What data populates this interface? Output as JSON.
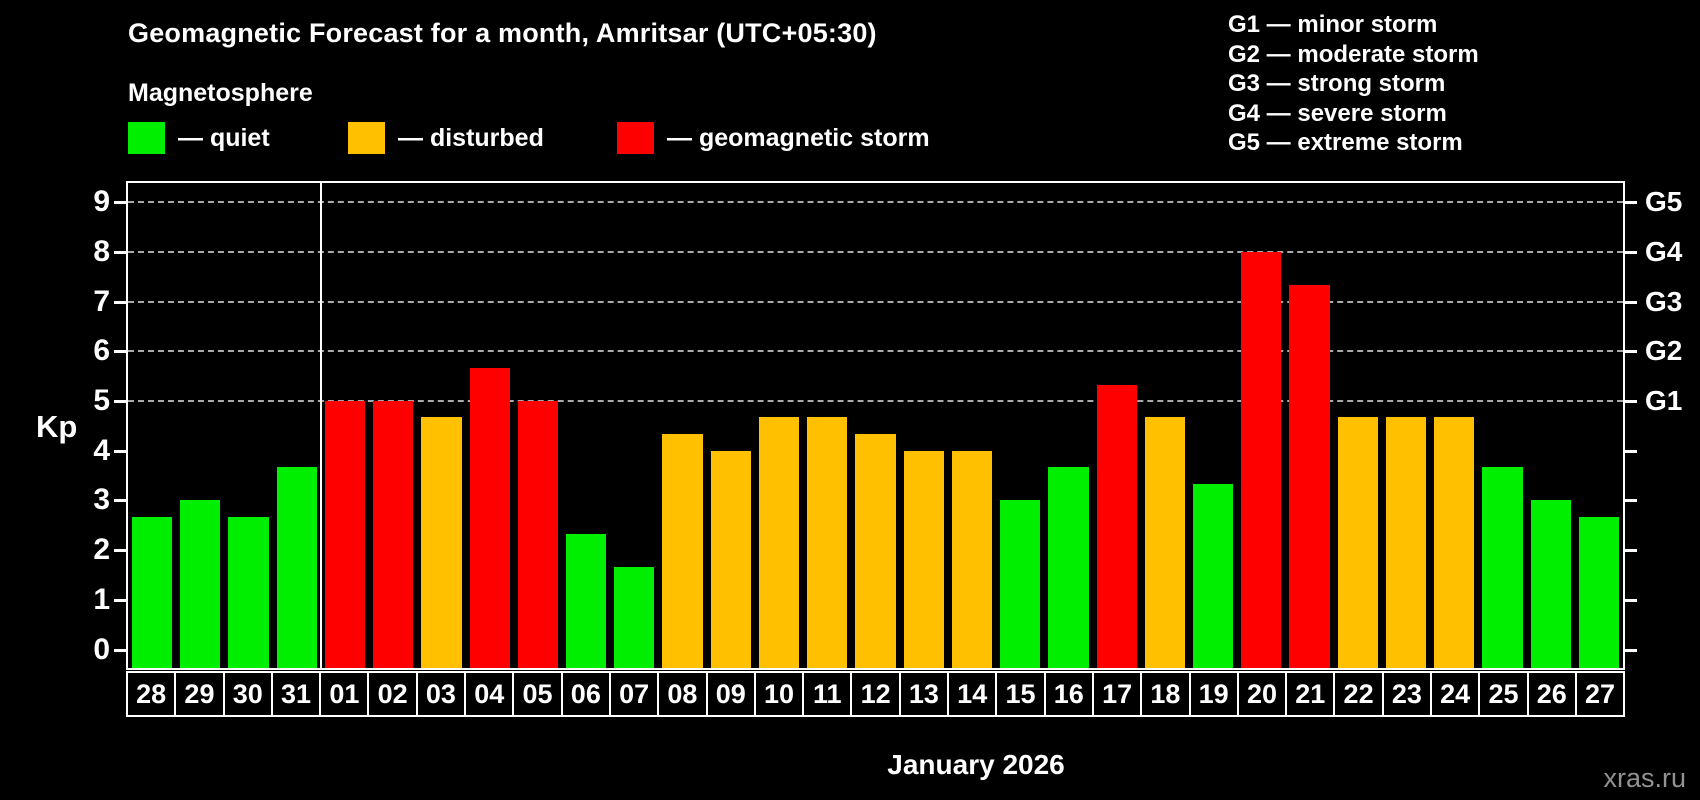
{
  "title": "Geomagnetic Forecast for a month, Amritsar (UTC+05:30)",
  "subtitle": "Magnetosphere",
  "legend": {
    "items": [
      {
        "key": "quiet",
        "label": "— quiet",
        "color": "#00ef00"
      },
      {
        "key": "disturbed",
        "label": "— disturbed",
        "color": "#ffc000"
      },
      {
        "key": "storm",
        "label": "— geomagnetic storm",
        "color": "#ff0000"
      }
    ]
  },
  "storm_scale_legend": [
    "G1 — minor storm",
    "G2 — moderate storm",
    "G3 — strong storm",
    "G4 — severe storm",
    "G5 — extreme storm"
  ],
  "chart_data": {
    "type": "bar",
    "title": "Geomagnetic Forecast for a month, Amritsar (UTC+05:30)",
    "ylabel": "Kp",
    "xlabel": "January 2026",
    "categories": [
      "28",
      "29",
      "30",
      "31",
      "01",
      "02",
      "03",
      "04",
      "05",
      "06",
      "07",
      "08",
      "09",
      "10",
      "11",
      "12",
      "13",
      "14",
      "15",
      "16",
      "17",
      "18",
      "19",
      "20",
      "21",
      "22",
      "23",
      "24",
      "25",
      "26",
      "27"
    ],
    "values": [
      2.67,
      3,
      2.67,
      3.67,
      5,
      5,
      4.67,
      5.67,
      5,
      2.33,
      1.67,
      4.33,
      4,
      4.67,
      4.67,
      4.33,
      4,
      4,
      3,
      3.67,
      5.33,
      4.67,
      3.33,
      8,
      7.33,
      4.67,
      4.67,
      4.67,
      3.67,
      3,
      2.67
    ],
    "ylim": [
      0,
      9
    ],
    "yticks": [
      0,
      1,
      2,
      3,
      4,
      5,
      6,
      7,
      8,
      9
    ],
    "gridlines_at": [
      5,
      6,
      7,
      8,
      9
    ],
    "grid": "dashed",
    "right_axis": [
      {
        "value": 5,
        "label": "G1"
      },
      {
        "value": 6,
        "label": "G2"
      },
      {
        "value": 7,
        "label": "G3"
      },
      {
        "value": 8,
        "label": "G4"
      },
      {
        "value": 9,
        "label": "G5"
      }
    ],
    "thresholds": {
      "disturbed_min": 4,
      "storm_min": 5
    },
    "month_boundary_after_index": 3,
    "legend_position": "top"
  },
  "watermark": "xras.ru"
}
